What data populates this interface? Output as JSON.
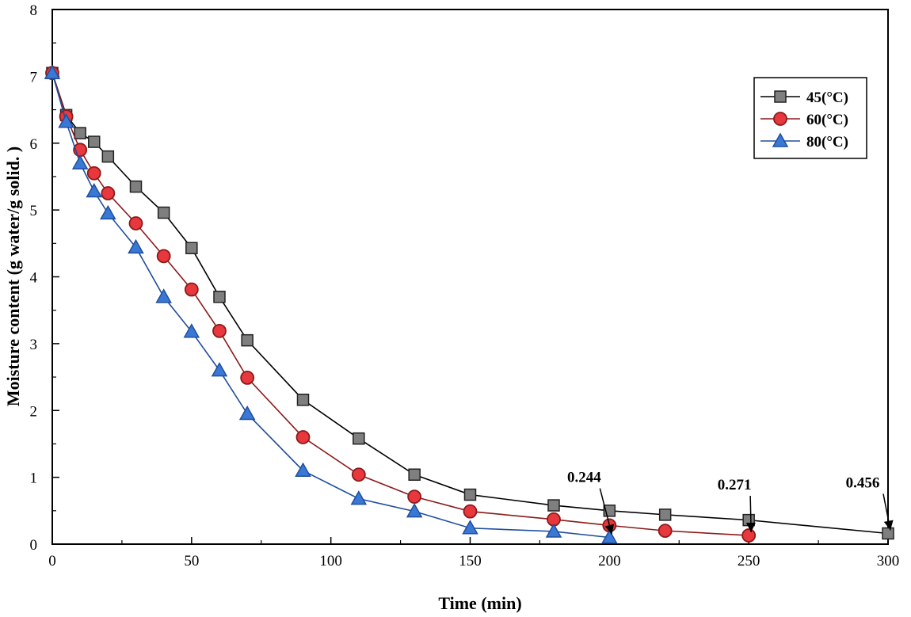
{
  "chart_data": {
    "type": "line",
    "xlabel": "Time (min)",
    "ylabel": "Moisture content (g water/g solid. )",
    "xlim": [
      0,
      300
    ],
    "ylim": [
      0,
      8
    ],
    "x_ticks": [
      "0",
      "50",
      "100",
      "150",
      "200",
      "250",
      "300"
    ],
    "y_ticks": [
      "0",
      "1",
      "2",
      "3",
      "4",
      "5",
      "6",
      "7",
      "8"
    ],
    "grid": false,
    "legend_position": "top-right",
    "series": [
      {
        "name": "45(°C)",
        "marker": "square",
        "color": "#000000",
        "marker_fill": "#7f7f7f",
        "x": [
          0,
          5,
          10,
          15,
          20,
          30,
          40,
          50,
          60,
          70,
          90,
          110,
          130,
          150,
          180,
          200,
          220,
          250,
          300
        ],
        "y": [
          7.05,
          6.42,
          6.15,
          6.02,
          5.8,
          5.35,
          4.96,
          4.43,
          3.7,
          3.05,
          2.16,
          1.58,
          1.04,
          0.74,
          0.58,
          0.5,
          0.44,
          0.36,
          0.16
        ]
      },
      {
        "name": "60(°C)",
        "marker": "circle",
        "color": "#8b1a1a",
        "marker_fill": "#e8383d",
        "x": [
          0,
          5,
          10,
          15,
          20,
          30,
          40,
          50,
          60,
          70,
          90,
          110,
          130,
          150,
          180,
          200,
          220,
          250
        ],
        "y": [
          7.05,
          6.4,
          5.9,
          5.55,
          5.25,
          4.8,
          4.31,
          3.81,
          3.19,
          2.49,
          1.6,
          1.04,
          0.71,
          0.49,
          0.37,
          0.28,
          0.2,
          0.13
        ]
      },
      {
        "name": "80(°C)",
        "marker": "triangle",
        "color": "#1f4e9c",
        "marker_fill": "#3a78d6",
        "x": [
          0,
          5,
          10,
          15,
          20,
          30,
          40,
          50,
          60,
          70,
          90,
          110,
          130,
          150,
          180,
          200
        ],
        "y": [
          7.05,
          6.32,
          5.7,
          5.28,
          4.95,
          4.44,
          3.7,
          3.18,
          2.6,
          1.95,
          1.1,
          0.68,
          0.49,
          0.24,
          0.19,
          0.1
        ]
      }
    ],
    "annotations": [
      {
        "text": "0.244",
        "x": 200,
        "y": 0.1
      },
      {
        "text": "0.271",
        "x": 250,
        "y": 0.13
      },
      {
        "text": "0.456",
        "x": 300,
        "y": 0.16
      }
    ]
  }
}
